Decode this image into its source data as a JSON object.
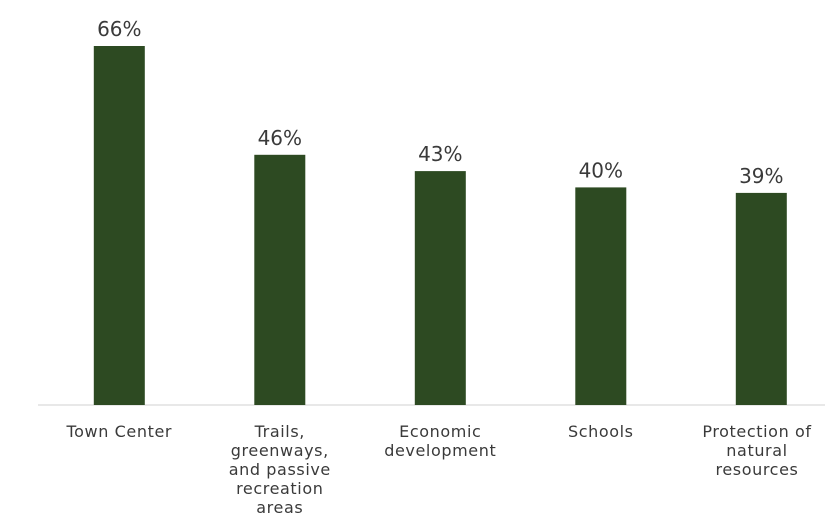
{
  "chart_data": {
    "type": "bar",
    "categories": [
      "Town Center",
      "Trails, greenways, and passive recreation areas",
      "Economic development",
      "Schools",
      "Protection of natural resources"
    ],
    "category_lines": [
      [
        "Town Center"
      ],
      [
        "Trails,",
        "greenways,",
        "and passive",
        "recreation",
        "areas"
      ],
      [
        "Economic",
        "development"
      ],
      [
        "Schools"
      ],
      [
        "Protection of",
        "natural",
        "resources"
      ]
    ],
    "values": [
      66,
      46,
      43,
      40,
      39
    ],
    "data_labels": [
      "66%",
      "46%",
      "43%",
      "40%",
      "39%"
    ],
    "unit": "%",
    "ylim": [
      0,
      70
    ],
    "grid": false,
    "legend": "none",
    "bar_color": "#2d4a22",
    "axis_color": "#d0d0d0",
    "text_color": "#3a3a3a"
  }
}
